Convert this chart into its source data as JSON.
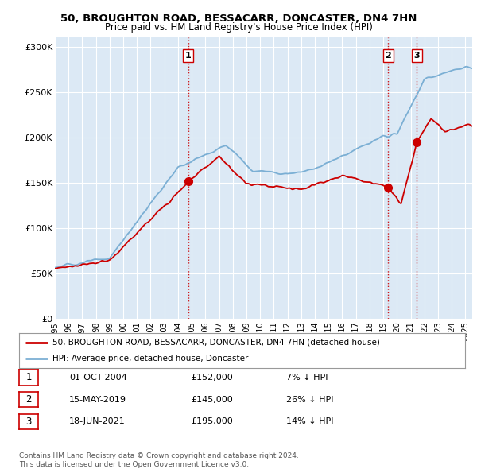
{
  "title1": "50, BROUGHTON ROAD, BESSACARR, DONCASTER, DN4 7HN",
  "title2": "Price paid vs. HM Land Registry's House Price Index (HPI)",
  "ylabel_ticks": [
    "£0",
    "£50K",
    "£100K",
    "£150K",
    "£200K",
    "£250K",
    "£300K"
  ],
  "ytick_values": [
    0,
    50000,
    100000,
    150000,
    200000,
    250000,
    300000
  ],
  "ylim": [
    0,
    310000
  ],
  "purchases": [
    {
      "label": "1",
      "date_num": 2004.75,
      "price": 152000
    },
    {
      "label": "2",
      "date_num": 2019.37,
      "price": 145000
    },
    {
      "label": "3",
      "date_num": 2021.46,
      "price": 195000
    }
  ],
  "legend_entries": [
    "50, BROUGHTON ROAD, BESSACARR, DONCASTER, DN4 7HN (detached house)",
    "HPI: Average price, detached house, Doncaster"
  ],
  "table_rows": [
    {
      "num": "1",
      "date": "01-OCT-2004",
      "price": "£152,000",
      "hpi": "7% ↓ HPI"
    },
    {
      "num": "2",
      "date": "15-MAY-2019",
      "price": "£145,000",
      "hpi": "26% ↓ HPI"
    },
    {
      "num": "3",
      "date": "18-JUN-2021",
      "price": "£195,000",
      "hpi": "14% ↓ HPI"
    }
  ],
  "footer": "Contains HM Land Registry data © Crown copyright and database right 2024.\nThis data is licensed under the Open Government Licence v3.0.",
  "hpi_color": "#7bafd4",
  "price_color": "#cc0000",
  "vline_color": "#cc0000",
  "bg_color": "#ffffff",
  "plot_bg_color": "#dce9f5",
  "grid_color": "#ffffff",
  "xlim_start": 1995.0,
  "xlim_end": 2025.5
}
